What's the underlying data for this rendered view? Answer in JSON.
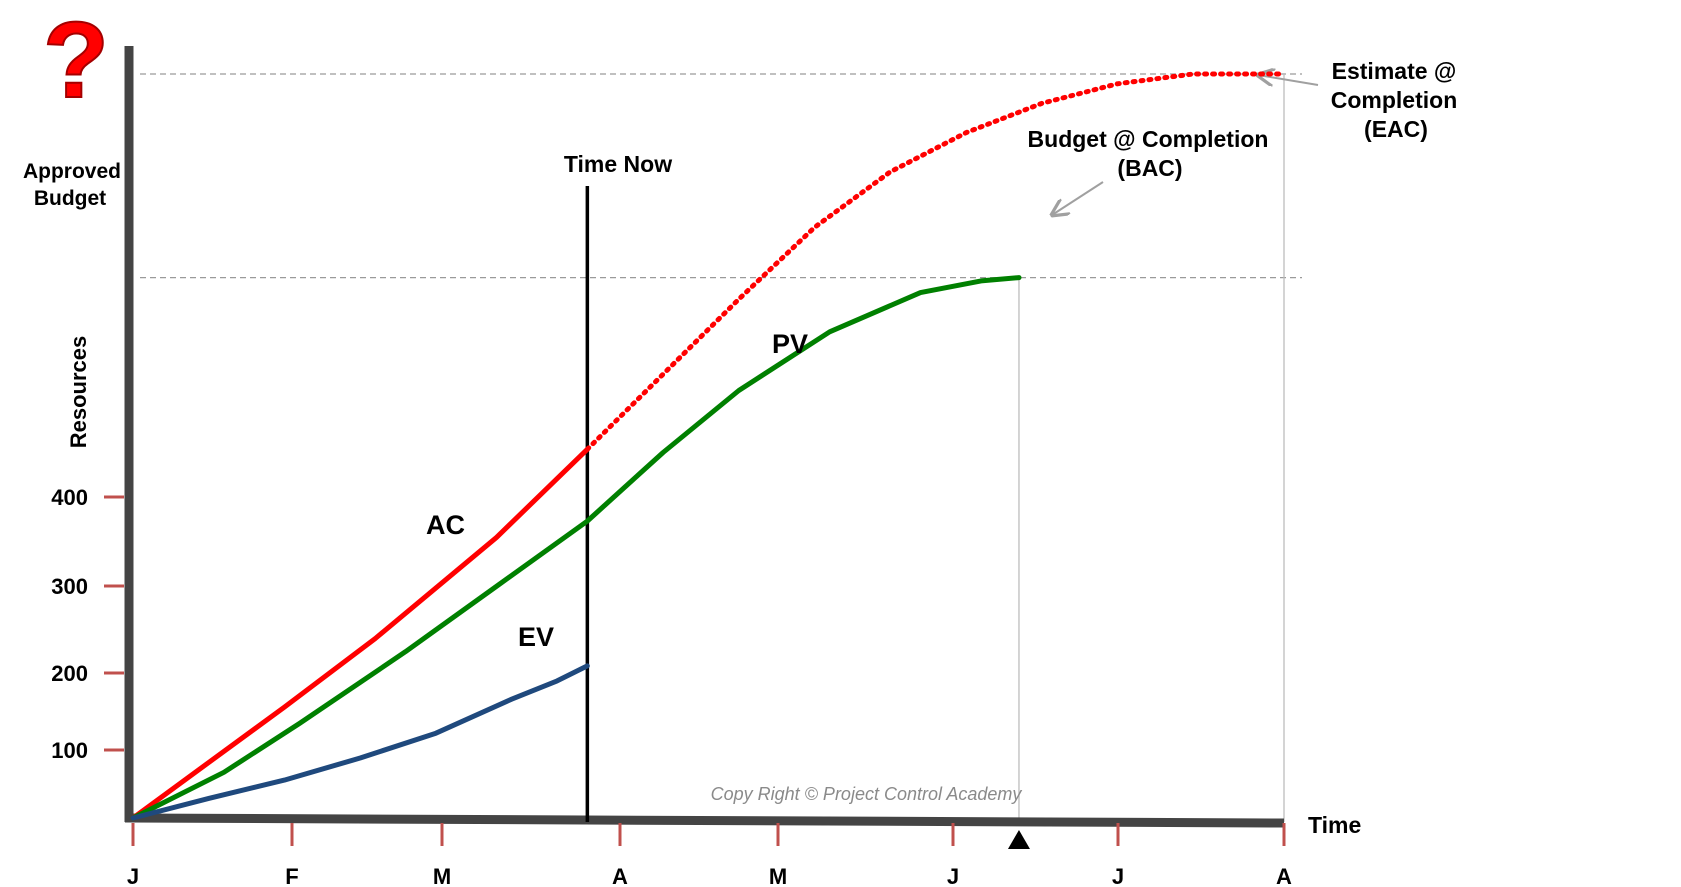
{
  "chart_data": {
    "type": "line",
    "xlabel": "Time",
    "ylabel": "Resources",
    "y_ticks": [
      "100",
      "200",
      "300",
      "400"
    ],
    "x_ticks": [
      "J",
      "F",
      "M",
      "A",
      "M",
      "J",
      "J",
      "A"
    ],
    "series": [
      {
        "name": "AC",
        "color": "#ff0000",
        "style": "solid",
        "points": [
          [
            0,
            0
          ],
          [
            0.5,
            85
          ],
          [
            1,
            170
          ],
          [
            1.6,
            275
          ],
          [
            2.4,
            430
          ],
          [
            3,
            565
          ]
        ]
      },
      {
        "name": "AC (forecast)",
        "color": "#ff0000",
        "style": "dotted",
        "points": [
          [
            3,
            565
          ],
          [
            3.5,
            680
          ],
          [
            4,
            795
          ],
          [
            4.5,
            905
          ],
          [
            5,
            990
          ],
          [
            5.5,
            1050
          ],
          [
            6,
            1095
          ],
          [
            6.5,
            1125
          ],
          [
            7,
            1140
          ],
          [
            7.6,
            1140
          ]
        ]
      },
      {
        "name": "PV",
        "color": "#008000",
        "style": "solid",
        "points": [
          [
            0,
            0
          ],
          [
            0.6,
            70
          ],
          [
            1.1,
            145
          ],
          [
            1.8,
            255
          ],
          [
            2.4,
            355
          ],
          [
            3,
            455
          ],
          [
            3.5,
            560
          ],
          [
            4,
            655
          ],
          [
            4.6,
            745
          ],
          [
            5.2,
            805
          ],
          [
            5.6,
            823
          ],
          [
            5.85,
            828
          ]
        ]
      },
      {
        "name": "EV",
        "color": "#1f497d",
        "style": "solid",
        "points": [
          [
            0,
            0
          ],
          [
            0.5,
            30
          ],
          [
            1,
            58
          ],
          [
            1.5,
            92
          ],
          [
            2,
            130
          ],
          [
            2.5,
            182
          ],
          [
            2.8,
            210
          ],
          [
            3,
            233
          ]
        ]
      }
    ],
    "series_labels": {
      "AC": "AC",
      "PV": "PV",
      "EV": "EV"
    },
    "time_now": {
      "label": "Time Now",
      "x": 3
    },
    "approved_budget": {
      "label_line1": "Approved",
      "label_line2": "Budget",
      "value": 828
    },
    "bac": {
      "label_line1": "Budget @ Completion",
      "label_line2": "(BAC)",
      "x": 5.85,
      "value": 828
    },
    "eac": {
      "label_line1": "Estimate @",
      "label_line2": "Completion",
      "label_line3": "(EAC)",
      "x": 7.6,
      "value": 1140
    },
    "xlim": [
      0,
      7.6
    ],
    "ylim": [
      0,
      1140
    ],
    "grid": false,
    "credit": "Copy Right © Project Control Academy",
    "icon": "question-mark-icon"
  }
}
